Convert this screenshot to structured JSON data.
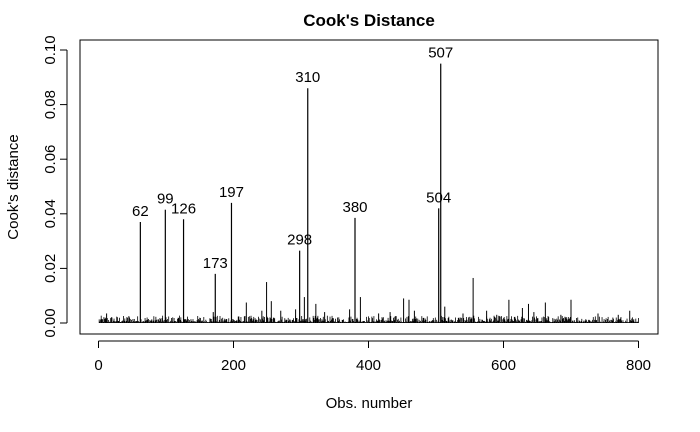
{
  "chart_data": {
    "type": "bar",
    "title": "Cook's Distance",
    "xlabel": "Obs. number",
    "ylabel": "Cook's distance",
    "xlim": [
      0,
      800
    ],
    "ylim": [
      0,
      0.1
    ],
    "x_ticks": [
      "0",
      "200",
      "400",
      "600",
      "800"
    ],
    "y_ticks": [
      "0.00",
      "0.02",
      "0.04",
      "0.06",
      "0.08",
      "0.10"
    ],
    "grid": false,
    "bar_color": "#000000",
    "labeled_points": [
      {
        "obs": 62,
        "label": "62",
        "value": 0.037
      },
      {
        "obs": 99,
        "label": "99",
        "value": 0.0415
      },
      {
        "obs": 126,
        "label": "126",
        "value": 0.038
      },
      {
        "obs": 173,
        "label": "173",
        "value": 0.018
      },
      {
        "obs": 197,
        "label": "197",
        "value": 0.044
      },
      {
        "obs": 298,
        "label": "298",
        "value": 0.0265
      },
      {
        "obs": 310,
        "label": "310",
        "value": 0.086
      },
      {
        "obs": 380,
        "label": "380",
        "value": 0.0385
      },
      {
        "obs": 504,
        "label": "504",
        "value": 0.042
      },
      {
        "obs": 507,
        "label": "507",
        "value": 0.095
      }
    ],
    "other_points": [
      {
        "obs": 249,
        "value": 0.015
      },
      {
        "obs": 256,
        "value": 0.008
      },
      {
        "obs": 219,
        "value": 0.0075
      },
      {
        "obs": 322,
        "value": 0.007
      },
      {
        "obs": 305,
        "value": 0.0095
      },
      {
        "obs": 388,
        "value": 0.0095
      },
      {
        "obs": 452,
        "value": 0.009
      },
      {
        "obs": 460,
        "value": 0.0085
      },
      {
        "obs": 513,
        "value": 0.006
      },
      {
        "obs": 555,
        "value": 0.0165
      },
      {
        "obs": 608,
        "value": 0.0085
      },
      {
        "obs": 628,
        "value": 0.0055
      },
      {
        "obs": 637,
        "value": 0.007
      },
      {
        "obs": 662,
        "value": 0.0075
      },
      {
        "obs": 700,
        "value": 0.0085
      },
      {
        "obs": 787,
        "value": 0.0045
      },
      {
        "obs": 12,
        "value": 0.0035
      },
      {
        "obs": 45,
        "value": 0.0025
      },
      {
        "obs": 170,
        "value": 0.004
      },
      {
        "obs": 242,
        "value": 0.0045
      },
      {
        "obs": 270,
        "value": 0.0045
      },
      {
        "obs": 292,
        "value": 0.005
      },
      {
        "obs": 335,
        "value": 0.004
      },
      {
        "obs": 372,
        "value": 0.005
      },
      {
        "obs": 415,
        "value": 0.0035
      },
      {
        "obs": 432,
        "value": 0.004
      },
      {
        "obs": 468,
        "value": 0.0045
      },
      {
        "obs": 540,
        "value": 0.0035
      },
      {
        "obs": 575,
        "value": 0.0045
      },
      {
        "obs": 590,
        "value": 0.003
      },
      {
        "obs": 645,
        "value": 0.004
      },
      {
        "obs": 685,
        "value": 0.003
      },
      {
        "obs": 740,
        "value": 0.0035
      },
      {
        "obs": 770,
        "value": 0.003
      }
    ],
    "n_obs": 800,
    "baseline_level": 0.0015
  }
}
